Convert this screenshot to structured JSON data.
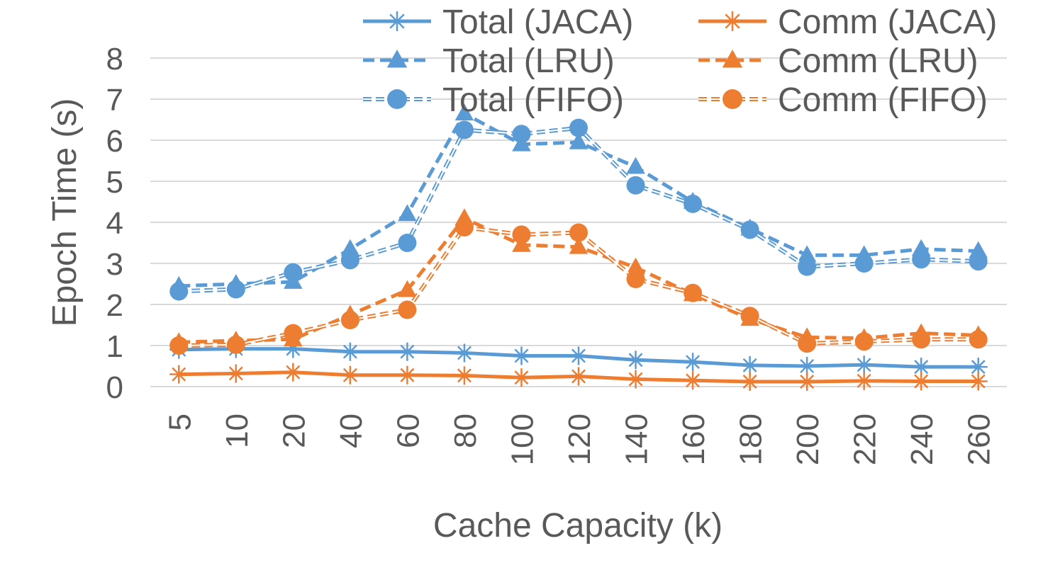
{
  "chart_data": {
    "type": "line",
    "title": "",
    "xlabel": "Cache Capacity (k)",
    "ylabel": "Epoch Time (s)",
    "categories": [
      "5",
      "10",
      "20",
      "40",
      "60",
      "80",
      "100",
      "120",
      "140",
      "160",
      "180",
      "200",
      "220",
      "240",
      "260"
    ],
    "ylim": [
      0,
      8
    ],
    "yticks": [
      "0",
      "1",
      "2",
      "3",
      "4",
      "5",
      "6",
      "7",
      "8"
    ],
    "grid": true,
    "legend_position": "top-right",
    "series": [
      {
        "name": "Total (JACA)",
        "color": "#5B9BD5",
        "dash": "solid",
        "marker": "asterisk",
        "values": [
          0.9,
          0.92,
          0.92,
          0.85,
          0.85,
          0.82,
          0.75,
          0.75,
          0.65,
          0.6,
          0.52,
          0.5,
          0.53,
          0.48,
          0.48
        ]
      },
      {
        "name": "Comm (JACA)",
        "color": "#ED7D31",
        "dash": "solid",
        "marker": "asterisk",
        "values": [
          0.3,
          0.32,
          0.35,
          0.28,
          0.28,
          0.27,
          0.22,
          0.25,
          0.18,
          0.15,
          0.12,
          0.12,
          0.14,
          0.13,
          0.13
        ]
      },
      {
        "name": "Total (LRU)",
        "color": "#5B9BD5",
        "dash": "dashed",
        "marker": "triangle",
        "values": [
          2.45,
          2.5,
          2.55,
          3.35,
          4.2,
          6.65,
          5.9,
          5.95,
          5.35,
          4.5,
          3.85,
          3.2,
          3.2,
          3.35,
          3.3
        ]
      },
      {
        "name": "Comm (LRU)",
        "color": "#ED7D31",
        "dash": "dashed",
        "marker": "triangle",
        "values": [
          1.08,
          1.12,
          1.15,
          1.75,
          2.35,
          4.1,
          3.45,
          3.4,
          2.9,
          2.25,
          1.65,
          1.2,
          1.18,
          1.3,
          1.25
        ]
      },
      {
        "name": "Total (FIFO)",
        "color": "#5B9BD5",
        "dash": "double",
        "marker": "circle",
        "values": [
          2.32,
          2.37,
          2.78,
          3.08,
          3.5,
          6.25,
          6.15,
          6.3,
          4.9,
          4.45,
          3.82,
          2.92,
          3.0,
          3.1,
          3.05
        ]
      },
      {
        "name": "Comm (FIFO)",
        "color": "#ED7D31",
        "dash": "double",
        "marker": "circle",
        "values": [
          1.0,
          1.02,
          1.3,
          1.62,
          1.87,
          3.88,
          3.7,
          3.75,
          2.62,
          2.28,
          1.72,
          1.05,
          1.1,
          1.15,
          1.15
        ]
      }
    ]
  }
}
